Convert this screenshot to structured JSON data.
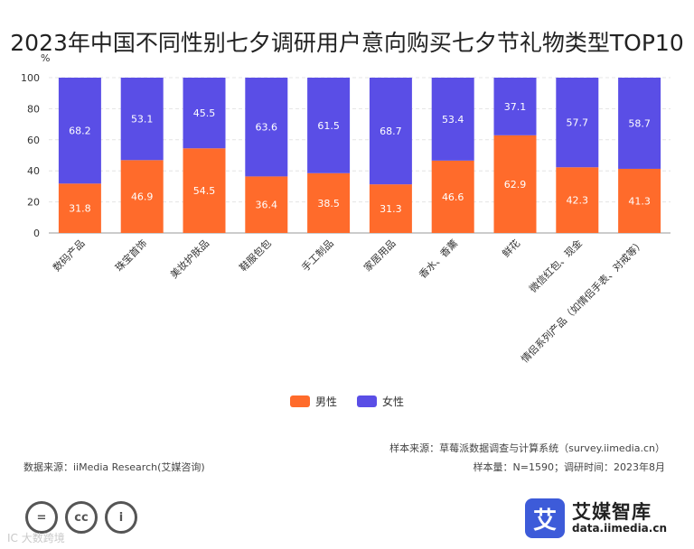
{
  "chart_data": {
    "type": "bar",
    "stacked": true,
    "title": "2023年中国不同性别七夕调研用户意向购买七夕节礼物类型TOP10",
    "unit": "%",
    "ylim": [
      0,
      100
    ],
    "yticks": [
      0,
      20,
      40,
      60,
      80,
      100
    ],
    "grid": true,
    "categories": [
      "数码产品",
      "珠宝首饰",
      "美妆护肤品",
      "鞋服包包",
      "手工制品",
      "家居用品",
      "香水、香薰",
      "鲜花",
      "微信红包、现金",
      "情侣系列产品（如情侣手表、对戒等）"
    ],
    "series": [
      {
        "name": "男性",
        "color": "#ff6b2b",
        "values": [
          31.8,
          46.9,
          54.5,
          36.4,
          38.5,
          31.3,
          46.6,
          62.9,
          42.3,
          41.3
        ]
      },
      {
        "name": "女性",
        "color": "#5a4ee6",
        "values": [
          68.2,
          53.1,
          45.5,
          63.6,
          61.5,
          68.7,
          53.4,
          37.1,
          57.7,
          58.7
        ]
      }
    ],
    "legend_position": "bottom-center"
  },
  "footer": {
    "source_right_1": "样本来源：草莓派数据调查与计算系统（survey.iimedia.cn）",
    "source_right_2": "样本量：N=1590；调研时间：2023年8月",
    "source_left": "数据来源：iiMedia Research(艾媒咨询)"
  },
  "license_icons": [
    "=",
    "cc",
    "i"
  ],
  "watermark": "IC 大数跨境",
  "brand": {
    "logo_char": "艾",
    "name": "艾媒智库",
    "url": "data.iimedia.cn"
  }
}
